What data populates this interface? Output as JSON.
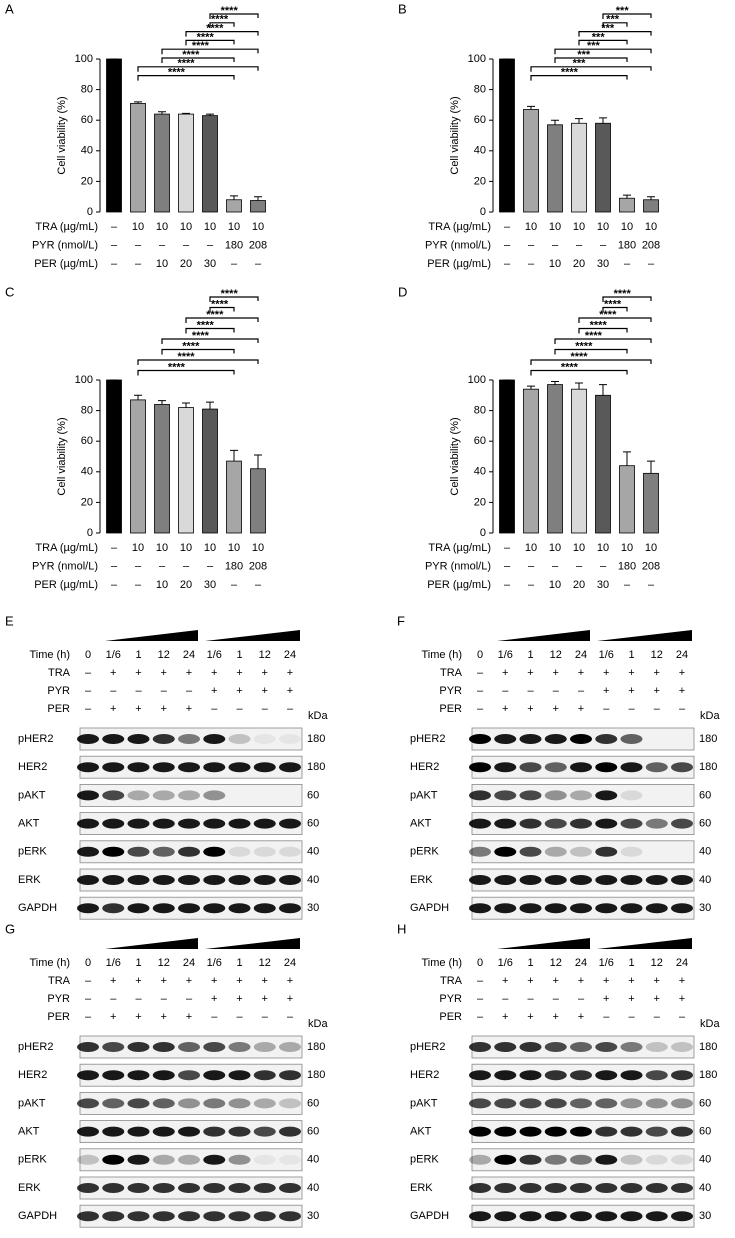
{
  "chart_data": [
    {
      "type": "bar",
      "label": "A",
      "ylabel": "Cell viability (%)",
      "ylim": [
        0,
        100
      ],
      "yticks": [
        0,
        20,
        40,
        60,
        80,
        100
      ],
      "values": [
        100,
        71,
        64,
        64,
        63,
        8,
        7.5
      ],
      "errors": [
        0,
        1,
        1.5,
        0.5,
        1,
        2.5,
        2.5
      ],
      "colors": [
        "#000000",
        "#a6a6a6",
        "#7f7f7f",
        "#d9d9d9",
        "#595959",
        "#a6a6a6",
        "#7f7f7f"
      ],
      "conditions": [
        {
          "name": "TRA (µg/mL)",
          "values": [
            "–",
            "10",
            "10",
            "10",
            "10",
            "10",
            "10"
          ]
        },
        {
          "name": "PYR (nmol/L)",
          "values": [
            "–",
            "–",
            "–",
            "–",
            "–",
            "180",
            "208"
          ]
        },
        {
          "name": "PER (µg/mL)",
          "values": [
            "–",
            "–",
            "10",
            "20",
            "30",
            "–",
            "–"
          ]
        }
      ],
      "brackets": [
        {
          "from": 1,
          "to": 5,
          "label": "****"
        },
        {
          "from": 1,
          "to": 6,
          "label": "****"
        },
        {
          "from": 2,
          "to": 5,
          "label": "****"
        },
        {
          "from": 2,
          "to": 6,
          "label": "****"
        },
        {
          "from": 3,
          "to": 5,
          "label": "****"
        },
        {
          "from": 3,
          "to": 6,
          "label": "****"
        },
        {
          "from": 4,
          "to": 5,
          "label": "****"
        },
        {
          "from": 4,
          "to": 6,
          "label": "****"
        }
      ]
    },
    {
      "type": "bar",
      "label": "B",
      "ylabel": "Cell viability (%)",
      "ylim": [
        0,
        100
      ],
      "yticks": [
        0,
        20,
        40,
        60,
        80,
        100
      ],
      "values": [
        100,
        67,
        57,
        58,
        58,
        9,
        8
      ],
      "errors": [
        0,
        2,
        3,
        3,
        3.5,
        2,
        2
      ],
      "colors": [
        "#000000",
        "#a6a6a6",
        "#7f7f7f",
        "#d9d9d9",
        "#595959",
        "#a6a6a6",
        "#7f7f7f"
      ],
      "conditions": [
        {
          "name": "TRA (µg/mL)",
          "values": [
            "–",
            "10",
            "10",
            "10",
            "10",
            "10",
            "10"
          ]
        },
        {
          "name": "PYR (nmol/L)",
          "values": [
            "–",
            "–",
            "–",
            "–",
            "–",
            "180",
            "208"
          ]
        },
        {
          "name": "PER (µg/mL)",
          "values": [
            "–",
            "–",
            "10",
            "20",
            "30",
            "–",
            "–"
          ]
        }
      ],
      "brackets": [
        {
          "from": 1,
          "to": 5,
          "label": "****"
        },
        {
          "from": 1,
          "to": 6,
          "label": "***"
        },
        {
          "from": 2,
          "to": 5,
          "label": "***"
        },
        {
          "from": 2,
          "to": 6,
          "label": "***"
        },
        {
          "from": 3,
          "to": 5,
          "label": "***"
        },
        {
          "from": 3,
          "to": 6,
          "label": "***"
        },
        {
          "from": 4,
          "to": 5,
          "label": "***"
        },
        {
          "from": 4,
          "to": 6,
          "label": "***"
        }
      ]
    },
    {
      "type": "bar",
      "label": "C",
      "ylabel": "Cell viability (%)",
      "ylim": [
        0,
        100
      ],
      "yticks": [
        0,
        20,
        40,
        60,
        80,
        100
      ],
      "values": [
        100,
        87,
        84,
        82,
        81,
        47,
        42
      ],
      "errors": [
        0,
        3,
        2.5,
        3,
        4.5,
        7,
        9
      ],
      "colors": [
        "#000000",
        "#a6a6a6",
        "#7f7f7f",
        "#d9d9d9",
        "#595959",
        "#a6a6a6",
        "#7f7f7f"
      ],
      "conditions": [
        {
          "name": "TRA (µg/mL)",
          "values": [
            "–",
            "10",
            "10",
            "10",
            "10",
            "10",
            "10"
          ]
        },
        {
          "name": "PYR (nmol/L)",
          "values": [
            "–",
            "–",
            "–",
            "–",
            "–",
            "180",
            "208"
          ]
        },
        {
          "name": "PER (µg/mL)",
          "values": [
            "–",
            "–",
            "10",
            "20",
            "30",
            "–",
            "–"
          ]
        }
      ],
      "brackets": [
        {
          "from": 1,
          "to": 5,
          "label": "****"
        },
        {
          "from": 1,
          "to": 6,
          "label": "****"
        },
        {
          "from": 2,
          "to": 5,
          "label": "****"
        },
        {
          "from": 2,
          "to": 6,
          "label": "****"
        },
        {
          "from": 3,
          "to": 5,
          "label": "****"
        },
        {
          "from": 3,
          "to": 6,
          "label": "****"
        },
        {
          "from": 4,
          "to": 5,
          "label": "****"
        },
        {
          "from": 4,
          "to": 6,
          "label": "****"
        }
      ]
    },
    {
      "type": "bar",
      "label": "D",
      "ylabel": "Cell viability (%)",
      "ylim": [
        0,
        100
      ],
      "yticks": [
        0,
        20,
        40,
        60,
        80,
        100
      ],
      "values": [
        100,
        94,
        97,
        94,
        90,
        44,
        39
      ],
      "errors": [
        0,
        2,
        2,
        4,
        7,
        9,
        8
      ],
      "colors": [
        "#000000",
        "#a6a6a6",
        "#7f7f7f",
        "#d9d9d9",
        "#595959",
        "#a6a6a6",
        "#7f7f7f"
      ],
      "conditions": [
        {
          "name": "TRA (µg/mL)",
          "values": [
            "–",
            "10",
            "10",
            "10",
            "10",
            "10",
            "10"
          ]
        },
        {
          "name": "PYR (nmol/L)",
          "values": [
            "–",
            "–",
            "–",
            "–",
            "–",
            "180",
            "208"
          ]
        },
        {
          "name": "PER (µg/mL)",
          "values": [
            "–",
            "–",
            "10",
            "20",
            "30",
            "–",
            "–"
          ]
        }
      ],
      "brackets": [
        {
          "from": 1,
          "to": 5,
          "label": "****"
        },
        {
          "from": 1,
          "to": 6,
          "label": "****"
        },
        {
          "from": 2,
          "to": 5,
          "label": "****"
        },
        {
          "from": 2,
          "to": 6,
          "label": "****"
        },
        {
          "from": 3,
          "to": 5,
          "label": "****"
        },
        {
          "from": 3,
          "to": 6,
          "label": "****"
        },
        {
          "from": 4,
          "to": 5,
          "label": "****"
        },
        {
          "from": 4,
          "to": 6,
          "label": "****"
        }
      ]
    }
  ],
  "blots": [
    {
      "label": "E",
      "kda_header": "kDa",
      "rows": [
        {
          "name": "Time (h)",
          "values": [
            "0",
            "1/6",
            "1",
            "12",
            "24",
            "1/6",
            "1",
            "12",
            "24"
          ]
        },
        {
          "name": "TRA",
          "values": [
            "–",
            "+",
            "+",
            "+",
            "+",
            "+",
            "+",
            "+",
            "+"
          ]
        },
        {
          "name": "PYR",
          "values": [
            "–",
            "–",
            "–",
            "–",
            "–",
            "+",
            "+",
            "+",
            "+"
          ]
        },
        {
          "name": "PER",
          "values": [
            "–",
            "+",
            "+",
            "+",
            "+",
            "–",
            "–",
            "–",
            "–"
          ]
        }
      ],
      "proteins": [
        {
          "name": "pHER2",
          "kda": 180,
          "intensity": [
            0.9,
            0.9,
            0.9,
            0.8,
            0.5,
            0.9,
            0.2,
            0.05,
            0.05
          ]
        },
        {
          "name": "HER2",
          "kda": 180,
          "intensity": [
            0.9,
            0.9,
            0.9,
            0.9,
            0.9,
            0.9,
            0.9,
            0.9,
            0.9
          ]
        },
        {
          "name": "pAKT",
          "kda": 60,
          "intensity": [
            0.9,
            0.7,
            0.3,
            0.3,
            0.3,
            0.4,
            0,
            0,
            0
          ]
        },
        {
          "name": "AKT",
          "kda": 60,
          "intensity": [
            0.9,
            0.9,
            0.9,
            0.9,
            0.9,
            0.9,
            0.9,
            0.9,
            0.9
          ]
        },
        {
          "name": "pERK",
          "kda": 40,
          "intensity": [
            0.9,
            1,
            0.7,
            0.6,
            0.8,
            1,
            0.1,
            0.1,
            0.1
          ]
        },
        {
          "name": "ERK",
          "kda": 40,
          "intensity": [
            0.9,
            0.9,
            0.9,
            0.9,
            0.9,
            0.9,
            0.9,
            0.9,
            0.9
          ]
        },
        {
          "name": "GAPDH",
          "kda": 30,
          "intensity": [
            0.9,
            0.8,
            0.9,
            0.9,
            0.9,
            0.9,
            0.9,
            0.9,
            0.9
          ]
        }
      ]
    },
    {
      "label": "F",
      "kda_header": "kDa",
      "rows": [
        {
          "name": "Time (h)",
          "values": [
            "0",
            "1/6",
            "1",
            "12",
            "24",
            "1/6",
            "1",
            "12",
            "24"
          ]
        },
        {
          "name": "TRA",
          "values": [
            "–",
            "+",
            "+",
            "+",
            "+",
            "+",
            "+",
            "+",
            "+"
          ]
        },
        {
          "name": "PYR",
          "values": [
            "–",
            "–",
            "–",
            "–",
            "–",
            "+",
            "+",
            "+",
            "+"
          ]
        },
        {
          "name": "PER",
          "values": [
            "–",
            "+",
            "+",
            "+",
            "+",
            "–",
            "–",
            "–",
            "–"
          ]
        }
      ],
      "proteins": [
        {
          "name": "pHER2",
          "kda": 180,
          "intensity": [
            1,
            0.9,
            0.9,
            0.9,
            1,
            0.8,
            0.6,
            0,
            0
          ]
        },
        {
          "name": "HER2",
          "kda": 180,
          "intensity": [
            1,
            0.9,
            0.7,
            0.6,
            0.9,
            1,
            0.9,
            0.6,
            0.7
          ]
        },
        {
          "name": "pAKT",
          "kda": 60,
          "intensity": [
            0.8,
            0.7,
            0.7,
            0.4,
            0.3,
            0.9,
            0.1,
            0,
            0
          ]
        },
        {
          "name": "AKT",
          "kda": 60,
          "intensity": [
            0.9,
            0.9,
            0.8,
            0.7,
            0.8,
            0.9,
            0.7,
            0.5,
            0.7
          ]
        },
        {
          "name": "pERK",
          "kda": 40,
          "intensity": [
            0.5,
            1,
            0.7,
            0.3,
            0.2,
            0.8,
            0.1,
            0,
            0
          ]
        },
        {
          "name": "ERK",
          "kda": 40,
          "intensity": [
            0.9,
            0.9,
            0.9,
            0.9,
            0.9,
            0.9,
            0.9,
            0.9,
            0.9
          ]
        },
        {
          "name": "GAPDH",
          "kda": 30,
          "intensity": [
            0.9,
            0.9,
            0.9,
            0.9,
            0.9,
            0.9,
            0.9,
            0.9,
            0.9
          ]
        }
      ]
    },
    {
      "label": "G",
      "kda_header": "kDa",
      "rows": [
        {
          "name": "Time (h)",
          "values": [
            "0",
            "1/6",
            "1",
            "12",
            "24",
            "1/6",
            "1",
            "12",
            "24"
          ]
        },
        {
          "name": "TRA",
          "values": [
            "–",
            "+",
            "+",
            "+",
            "+",
            "+",
            "+",
            "+",
            "+"
          ]
        },
        {
          "name": "PYR",
          "values": [
            "–",
            "–",
            "–",
            "–",
            "–",
            "+",
            "+",
            "+",
            "+"
          ]
        },
        {
          "name": "PER",
          "values": [
            "–",
            "+",
            "+",
            "+",
            "+",
            "–",
            "–",
            "–",
            "–"
          ]
        }
      ],
      "proteins": [
        {
          "name": "pHER2",
          "kda": 180,
          "intensity": [
            0.8,
            0.7,
            0.8,
            0.8,
            0.6,
            0.7,
            0.5,
            0.3,
            0.3
          ]
        },
        {
          "name": "HER2",
          "kda": 180,
          "intensity": [
            0.9,
            0.9,
            0.9,
            0.9,
            0.7,
            0.9,
            0.9,
            0.8,
            0.8
          ]
        },
        {
          "name": "pAKT",
          "kda": 60,
          "intensity": [
            0.7,
            0.6,
            0.7,
            0.6,
            0.4,
            0.5,
            0.4,
            0.3,
            0.2
          ]
        },
        {
          "name": "AKT",
          "kda": 60,
          "intensity": [
            0.9,
            0.9,
            0.9,
            0.9,
            0.9,
            0.8,
            0.8,
            0.7,
            0.8
          ]
        },
        {
          "name": "pERK",
          "kda": 40,
          "intensity": [
            0.2,
            1,
            0.9,
            0.3,
            0.3,
            0.9,
            0.4,
            0.05,
            0.05
          ]
        },
        {
          "name": "ERK",
          "kda": 40,
          "intensity": [
            0.8,
            0.8,
            0.8,
            0.8,
            0.8,
            0.8,
            0.8,
            0.8,
            0.8
          ]
        },
        {
          "name": "GAPDH",
          "kda": 30,
          "intensity": [
            0.8,
            0.8,
            0.8,
            0.8,
            0.8,
            0.8,
            0.8,
            0.8,
            0.8
          ]
        }
      ]
    },
    {
      "label": "H",
      "kda_header": "kDa",
      "rows": [
        {
          "name": "Time (h)",
          "values": [
            "0",
            "1/6",
            "1",
            "12",
            "24",
            "1/6",
            "1",
            "12",
            "24"
          ]
        },
        {
          "name": "TRA",
          "values": [
            "–",
            "+",
            "+",
            "+",
            "+",
            "+",
            "+",
            "+",
            "+"
          ]
        },
        {
          "name": "PYR",
          "values": [
            "–",
            "–",
            "–",
            "–",
            "–",
            "+",
            "+",
            "+",
            "+"
          ]
        },
        {
          "name": "PER",
          "values": [
            "–",
            "+",
            "+",
            "+",
            "+",
            "–",
            "–",
            "–",
            "–"
          ]
        }
      ],
      "proteins": [
        {
          "name": "pHER2",
          "kda": 180,
          "intensity": [
            0.8,
            0.8,
            0.8,
            0.7,
            0.6,
            0.7,
            0.5,
            0.2,
            0.2
          ]
        },
        {
          "name": "HER2",
          "kda": 180,
          "intensity": [
            0.9,
            0.9,
            0.9,
            0.8,
            0.8,
            0.9,
            0.9,
            0.7,
            0.8
          ]
        },
        {
          "name": "pAKT",
          "kda": 60,
          "intensity": [
            0.7,
            0.7,
            0.7,
            0.7,
            0.6,
            0.6,
            0.4,
            0.4,
            0.4
          ]
        },
        {
          "name": "AKT",
          "kda": 60,
          "intensity": [
            1,
            1,
            1,
            1,
            1,
            0.8,
            0.8,
            0.7,
            0.8
          ]
        },
        {
          "name": "pERK",
          "kda": 40,
          "intensity": [
            0.3,
            1,
            0.8,
            0.5,
            0.5,
            0.9,
            0.2,
            0.1,
            0.1
          ]
        },
        {
          "name": "ERK",
          "kda": 40,
          "intensity": [
            0.8,
            0.8,
            0.8,
            0.8,
            0.8,
            0.8,
            0.8,
            0.8,
            0.8
          ]
        },
        {
          "name": "GAPDH",
          "kda": 30,
          "intensity": [
            0.9,
            0.9,
            0.9,
            0.9,
            0.9,
            0.9,
            0.9,
            0.9,
            0.9
          ]
        }
      ]
    }
  ]
}
